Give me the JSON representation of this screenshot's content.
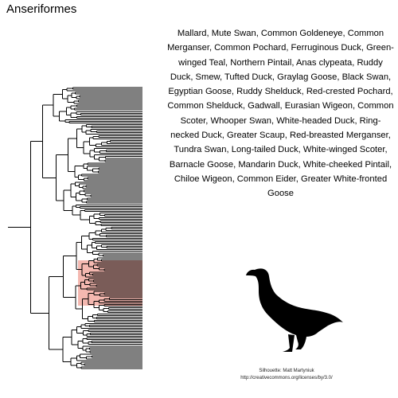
{
  "title": "Anseriformes",
  "species_text": "Mallard, Mute Swan, Common Goldeneye, Common Merganser, Common Pochard, Ferruginous Duck, Green-winged Teal, Northern Pintail, Anas clypeata, Ruddy Duck, Smew, Tufted Duck, Graylag Goose, Black Swan, Egyptian Goose, Ruddy Shelduck, Red-crested Pochard, Common Shelduck, Gadwall, Eurasian Wigeon, Common Scoter, Whooper Swan, White-headed Duck, Ring-necked Duck, Greater Scaup, Red-breasted Merganser, Tundra Swan, Long-tailed Duck, White-winged Scoter, Barnacle Goose, Mandarin Duck, White-cheeked Pintail, Chiloe Wigeon, Common Eider, Greater White-fronted Goose",
  "credit": {
    "line1": "Silhouette: Matt Martyniuk",
    "line2": "http://creativecommons.org/licenses/by/3.0/"
  },
  "highlight_color": "#f4b8b0",
  "silhouette_icon": "goose-silhouette-icon"
}
